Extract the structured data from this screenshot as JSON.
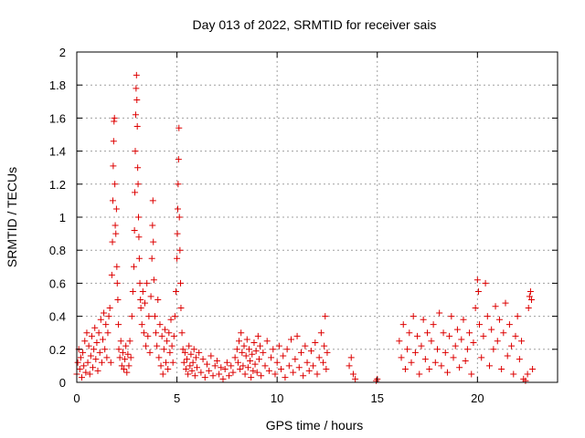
{
  "chart_data": {
    "type": "scatter",
    "title": "Day 013 of 2022, SRMTID for receiver sais",
    "xlabel": "GPS time / hours",
    "ylabel": "SRMTID / TECUs",
    "xlim": [
      0,
      24
    ],
    "ylim": [
      0,
      2
    ],
    "x_ticks": [
      {
        "value": 0,
        "label": "0"
      },
      {
        "value": 5,
        "label": "5"
      },
      {
        "value": 10,
        "label": "10"
      },
      {
        "value": 15,
        "label": "15"
      },
      {
        "value": 20,
        "label": "20"
      }
    ],
    "y_ticks": [
      {
        "value": 0,
        "label": "0"
      },
      {
        "value": 0.2,
        "label": "0.2"
      },
      {
        "value": 0.4,
        "label": "0.4"
      },
      {
        "value": 0.6,
        "label": "0.6"
      },
      {
        "value": 0.8,
        "label": "0.8"
      },
      {
        "value": 1.0,
        "label": "1"
      },
      {
        "value": 1.2,
        "label": "1.2"
      },
      {
        "value": 1.4,
        "label": "1.4"
      },
      {
        "value": 1.6,
        "label": "1.6"
      },
      {
        "value": 1.8,
        "label": "1.8"
      },
      {
        "value": 2.0,
        "label": "2"
      }
    ],
    "grid": true,
    "marker": "+",
    "marker_color": "#dd0000",
    "series": [
      {
        "name": "sais",
        "points": [
          [
            0.0,
            0.05
          ],
          [
            0.05,
            0.12
          ],
          [
            0.1,
            0.2
          ],
          [
            0.15,
            0.08
          ],
          [
            0.2,
            0.15
          ],
          [
            0.25,
            0.03
          ],
          [
            0.3,
            0.18
          ],
          [
            0.35,
            0.1
          ],
          [
            0.4,
            0.25
          ],
          [
            0.45,
            0.06
          ],
          [
            0.5,
            0.3
          ],
          [
            0.55,
            0.12
          ],
          [
            0.6,
            0.22
          ],
          [
            0.65,
            0.05
          ],
          [
            0.7,
            0.16
          ],
          [
            0.75,
            0.28
          ],
          [
            0.8,
            0.09
          ],
          [
            0.85,
            0.2
          ],
          [
            0.9,
            0.33
          ],
          [
            0.95,
            0.14
          ],
          [
            1.0,
            0.24
          ],
          [
            1.05,
            0.07
          ],
          [
            1.1,
            0.3
          ],
          [
            1.15,
            0.18
          ],
          [
            1.2,
            0.38
          ],
          [
            1.25,
            0.12
          ],
          [
            1.3,
            0.26
          ],
          [
            1.35,
            0.42
          ],
          [
            1.4,
            0.2
          ],
          [
            1.45,
            0.35
          ],
          [
            1.5,
            0.15
          ],
          [
            1.55,
            0.3
          ],
          [
            1.6,
            0.4
          ],
          [
            1.65,
            0.45
          ],
          [
            1.7,
            0.12
          ],
          [
            1.75,
            0.65
          ],
          [
            1.78,
            0.85
          ],
          [
            1.8,
            1.1
          ],
          [
            1.82,
            1.31
          ],
          [
            1.84,
            1.46
          ],
          [
            1.86,
            1.58
          ],
          [
            1.88,
            1.6
          ],
          [
            1.9,
            1.2
          ],
          [
            1.92,
            0.95
          ],
          [
            1.95,
            0.9
          ],
          [
            1.98,
            1.05
          ],
          [
            2.0,
            0.7
          ],
          [
            2.02,
            0.6
          ],
          [
            2.05,
            0.5
          ],
          [
            2.08,
            0.35
          ],
          [
            2.1,
            0.2
          ],
          [
            2.15,
            0.15
          ],
          [
            2.2,
            0.25
          ],
          [
            2.25,
            0.1
          ],
          [
            2.3,
            0.18
          ],
          [
            2.35,
            0.08
          ],
          [
            2.4,
            0.14
          ],
          [
            2.45,
            0.22
          ],
          [
            2.5,
            0.06
          ],
          [
            2.55,
            0.17
          ],
          [
            2.6,
            0.1
          ],
          [
            2.65,
            0.25
          ],
          [
            2.7,
            0.15
          ],
          [
            2.75,
            0.4
          ],
          [
            2.8,
            0.55
          ],
          [
            2.85,
            0.7
          ],
          [
            2.88,
            0.92
          ],
          [
            2.9,
            1.15
          ],
          [
            2.92,
            1.4
          ],
          [
            2.94,
            1.62
          ],
          [
            2.96,
            1.78
          ],
          [
            2.98,
            1.86
          ],
          [
            3.0,
            1.71
          ],
          [
            3.02,
            1.55
          ],
          [
            3.04,
            1.3
          ],
          [
            3.06,
            1.2
          ],
          [
            3.08,
            1.0
          ],
          [
            3.1,
            0.88
          ],
          [
            3.12,
            0.75
          ],
          [
            3.15,
            0.6
          ],
          [
            3.18,
            0.5
          ],
          [
            3.2,
            0.45
          ],
          [
            3.25,
            0.35
          ],
          [
            3.3,
            0.55
          ],
          [
            3.35,
            0.3
          ],
          [
            3.4,
            0.48
          ],
          [
            3.45,
            0.22
          ],
          [
            3.5,
            0.6
          ],
          [
            3.55,
            0.28
          ],
          [
            3.6,
            0.4
          ],
          [
            3.65,
            0.18
          ],
          [
            3.7,
            0.52
          ],
          [
            3.75,
            0.75
          ],
          [
            3.78,
            0.95
          ],
          [
            3.8,
            1.1
          ],
          [
            3.82,
            0.85
          ],
          [
            3.85,
            0.62
          ],
          [
            3.9,
            0.4
          ],
          [
            3.95,
            0.3
          ],
          [
            4.0,
            0.22
          ],
          [
            4.05,
            0.5
          ],
          [
            4.1,
            0.15
          ],
          [
            4.15,
            0.35
          ],
          [
            4.2,
            0.1
          ],
          [
            4.25,
            0.28
          ],
          [
            4.3,
            0.05
          ],
          [
            4.35,
            0.2
          ],
          [
            4.4,
            0.32
          ],
          [
            4.45,
            0.12
          ],
          [
            4.5,
            0.25
          ],
          [
            4.55,
            0.08
          ],
          [
            4.6,
            0.3
          ],
          [
            4.65,
            0.18
          ],
          [
            4.7,
            0.38
          ],
          [
            4.75,
            0.22
          ],
          [
            4.8,
            0.12
          ],
          [
            4.85,
            0.28
          ],
          [
            4.9,
            0.4
          ],
          [
            4.95,
            0.55
          ],
          [
            5.0,
            0.75
          ],
          [
            5.02,
            0.9
          ],
          [
            5.04,
            1.05
          ],
          [
            5.06,
            1.2
          ],
          [
            5.08,
            1.35
          ],
          [
            5.1,
            1.54
          ],
          [
            5.12,
            1.0
          ],
          [
            5.15,
            0.8
          ],
          [
            5.18,
            0.6
          ],
          [
            5.2,
            0.45
          ],
          [
            5.25,
            0.3
          ],
          [
            5.3,
            0.2
          ],
          [
            5.35,
            0.12
          ],
          [
            5.4,
            0.18
          ],
          [
            5.45,
            0.08
          ],
          [
            5.5,
            0.14
          ],
          [
            5.55,
            0.05
          ],
          [
            5.6,
            0.22
          ],
          [
            5.65,
            0.1
          ],
          [
            5.7,
            0.17
          ],
          [
            5.75,
            0.07
          ],
          [
            5.8,
            0.12
          ],
          [
            5.85,
            0.2
          ],
          [
            5.9,
            0.04
          ],
          [
            5.95,
            0.15
          ],
          [
            6.0,
            0.09
          ],
          [
            6.1,
            0.18
          ],
          [
            6.2,
            0.06
          ],
          [
            6.3,
            0.14
          ],
          [
            6.4,
            0.03
          ],
          [
            6.5,
            0.11
          ],
          [
            6.6,
            0.07
          ],
          [
            6.7,
            0.16
          ],
          [
            6.8,
            0.04
          ],
          [
            6.9,
            0.1
          ],
          [
            7.0,
            0.13
          ],
          [
            7.1,
            0.05
          ],
          [
            7.2,
            0.09
          ],
          [
            7.3,
            0.02
          ],
          [
            7.4,
            0.08
          ],
          [
            7.5,
            0.12
          ],
          [
            7.6,
            0.04
          ],
          [
            7.7,
            0.1
          ],
          [
            7.8,
            0.06
          ],
          [
            7.9,
            0.15
          ],
          [
            8.0,
            0.2
          ],
          [
            8.05,
            0.12
          ],
          [
            8.1,
            0.25
          ],
          [
            8.15,
            0.08
          ],
          [
            8.2,
            0.3
          ],
          [
            8.25,
            0.18
          ],
          [
            8.3,
            0.1
          ],
          [
            8.35,
            0.22
          ],
          [
            8.4,
            0.05
          ],
          [
            8.45,
            0.16
          ],
          [
            8.5,
            0.26
          ],
          [
            8.55,
            0.09
          ],
          [
            8.6,
            0.2
          ],
          [
            8.65,
            0.13
          ],
          [
            8.7,
            0.03
          ],
          [
            8.75,
            0.17
          ],
          [
            8.8,
            0.07
          ],
          [
            8.85,
            0.24
          ],
          [
            8.9,
            0.11
          ],
          [
            8.95,
            0.19
          ],
          [
            9.0,
            0.06
          ],
          [
            9.05,
            0.28
          ],
          [
            9.1,
            0.14
          ],
          [
            9.15,
            0.22
          ],
          [
            9.2,
            0.04
          ],
          [
            9.3,
            0.18
          ],
          [
            9.4,
            0.1
          ],
          [
            9.5,
            0.25
          ],
          [
            9.6,
            0.07
          ],
          [
            9.7,
            0.15
          ],
          [
            9.8,
            0.2
          ],
          [
            9.9,
            0.05
          ],
          [
            10.0,
            0.12
          ],
          [
            10.1,
            0.22
          ],
          [
            10.2,
            0.08
          ],
          [
            10.3,
            0.16
          ],
          [
            10.4,
            0.03
          ],
          [
            10.5,
            0.2
          ],
          [
            10.6,
            0.1
          ],
          [
            10.7,
            0.26
          ],
          [
            10.8,
            0.06
          ],
          [
            10.9,
            0.14
          ],
          [
            11.0,
            0.28
          ],
          [
            11.1,
            0.09
          ],
          [
            11.2,
            0.18
          ],
          [
            11.3,
            0.04
          ],
          [
            11.4,
            0.22
          ],
          [
            11.5,
            0.12
          ],
          [
            11.6,
            0.07
          ],
          [
            11.7,
            0.19
          ],
          [
            11.8,
            0.1
          ],
          [
            11.9,
            0.24
          ],
          [
            12.0,
            0.05
          ],
          [
            12.1,
            0.15
          ],
          [
            12.2,
            0.3
          ],
          [
            12.3,
            0.12
          ],
          [
            12.35,
            0.22
          ],
          [
            12.4,
            0.4
          ],
          [
            12.45,
            0.08
          ],
          [
            12.5,
            0.18
          ],
          [
            13.6,
            0.1
          ],
          [
            13.7,
            0.15
          ],
          [
            13.8,
            0.05
          ],
          [
            13.9,
            0.02
          ],
          [
            14.95,
            0.01
          ],
          [
            15.0,
            0.02
          ],
          [
            16.1,
            0.25
          ],
          [
            16.2,
            0.15
          ],
          [
            16.3,
            0.35
          ],
          [
            16.4,
            0.08
          ],
          [
            16.5,
            0.2
          ],
          [
            16.6,
            0.3
          ],
          [
            16.7,
            0.12
          ],
          [
            16.8,
            0.4
          ],
          [
            16.9,
            0.18
          ],
          [
            17.0,
            0.28
          ],
          [
            17.1,
            0.05
          ],
          [
            17.2,
            0.22
          ],
          [
            17.3,
            0.38
          ],
          [
            17.4,
            0.14
          ],
          [
            17.5,
            0.3
          ],
          [
            17.6,
            0.08
          ],
          [
            17.7,
            0.25
          ],
          [
            17.8,
            0.35
          ],
          [
            17.9,
            0.12
          ],
          [
            18.0,
            0.2
          ],
          [
            18.1,
            0.42
          ],
          [
            18.2,
            0.1
          ],
          [
            18.3,
            0.3
          ],
          [
            18.4,
            0.18
          ],
          [
            18.5,
            0.06
          ],
          [
            18.6,
            0.28
          ],
          [
            18.7,
            0.4
          ],
          [
            18.8,
            0.15
          ],
          [
            18.9,
            0.22
          ],
          [
            19.0,
            0.32
          ],
          [
            19.1,
            0.09
          ],
          [
            19.2,
            0.26
          ],
          [
            19.3,
            0.38
          ],
          [
            19.4,
            0.13
          ],
          [
            19.5,
            0.2
          ],
          [
            19.6,
            0.3
          ],
          [
            19.7,
            0.05
          ],
          [
            19.8,
            0.24
          ],
          [
            19.9,
            0.45
          ],
          [
            20.0,
            0.62
          ],
          [
            20.05,
            0.55
          ],
          [
            20.1,
            0.35
          ],
          [
            20.2,
            0.15
          ],
          [
            20.3,
            0.28
          ],
          [
            20.4,
            0.6
          ],
          [
            20.5,
            0.4
          ],
          [
            20.6,
            0.1
          ],
          [
            20.7,
            0.32
          ],
          [
            20.8,
            0.2
          ],
          [
            20.9,
            0.46
          ],
          [
            21.0,
            0.25
          ],
          [
            21.1,
            0.38
          ],
          [
            21.2,
            0.08
          ],
          [
            21.3,
            0.3
          ],
          [
            21.4,
            0.48
          ],
          [
            21.5,
            0.16
          ],
          [
            21.6,
            0.35
          ],
          [
            21.7,
            0.22
          ],
          [
            21.8,
            0.05
          ],
          [
            21.9,
            0.28
          ],
          [
            22.0,
            0.4
          ],
          [
            22.1,
            0.14
          ],
          [
            22.2,
            0.25
          ],
          [
            22.3,
            0.02
          ],
          [
            22.4,
            0.01
          ],
          [
            22.5,
            0.05
          ],
          [
            22.55,
            0.45
          ],
          [
            22.6,
            0.52
          ],
          [
            22.65,
            0.55
          ],
          [
            22.7,
            0.5
          ],
          [
            22.75,
            0.08
          ]
        ]
      }
    ]
  }
}
